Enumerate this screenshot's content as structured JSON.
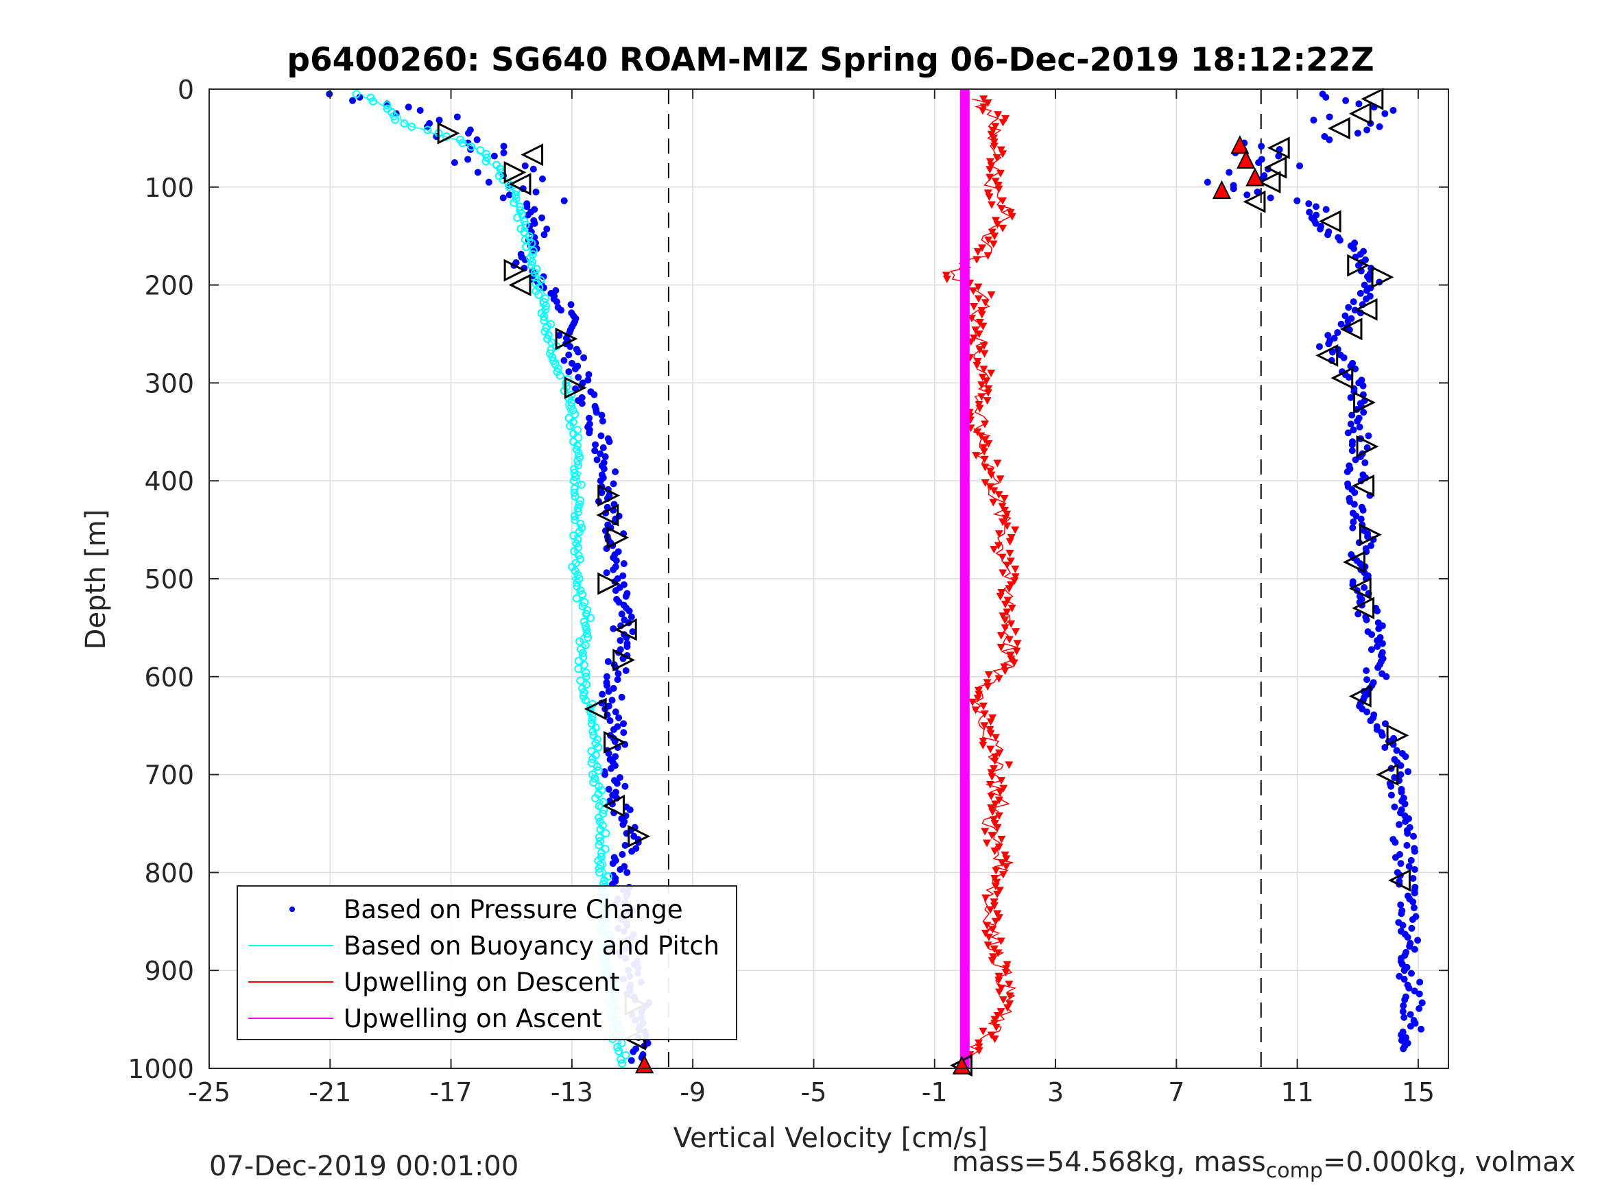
{
  "chart_data": {
    "type": "scatter",
    "title": "p6400260: SG640 ROAM-MIZ Spring 06-Dec-2019 18:12:22Z",
    "xlabel": "Vertical Velocity [cm/s]",
    "ylabel": "Depth [m]",
    "xlim": [
      -25,
      16
    ],
    "ylim": [
      1000,
      0
    ],
    "y_reversed": true,
    "xticks": [
      -25,
      -21,
      -17,
      -13,
      -9,
      -5,
      -1,
      3,
      7,
      11,
      15
    ],
    "yticks": [
      0,
      100,
      200,
      300,
      400,
      500,
      600,
      700,
      800,
      900,
      1000
    ],
    "grid": true,
    "legend_position": "bottom-left",
    "dashed_lines_x": [
      -9.8,
      9.8
    ],
    "series": [
      {
        "name": "Based on Pressure Change",
        "style": "dots",
        "color": "#0000ff",
        "profiles": [
          {
            "depth": [
              5,
              15,
              25,
              35,
              45,
              55,
              65,
              75,
              85,
              95,
              105,
              120,
              140,
              160,
              180,
              200,
              220,
              240,
              260,
              280,
              300,
              330,
              360,
              400,
              430,
              460,
              500,
              530,
              560,
              600,
              630,
              660,
              700,
              730,
              760,
              800,
              830,
              860,
              900,
              930,
              960,
              980,
              995
            ],
            "velocity": [
              -21,
              -18.5,
              -17.8,
              -17.5,
              -16.8,
              -15.8,
              -15.4,
              -15.8,
              -15.2,
              -15.0,
              -14.6,
              -14.3,
              -14.1,
              -14.3,
              -14.6,
              -14.0,
              -13.2,
              -13.2,
              -13.0,
              -12.9,
              -12.7,
              -12.3,
              -12.0,
              -11.7,
              -11.8,
              -11.5,
              -11.6,
              -11.4,
              -11.3,
              -11.6,
              -11.7,
              -11.5,
              -11.6,
              -11.4,
              -11.0,
              -11.5,
              -11.3,
              -11.2,
              -11.1,
              -10.8,
              -10.6,
              -10.6,
              -10.7
            ]
          },
          {
            "depth": [
              5,
              15,
              25,
              35,
              45,
              55,
              65,
              75,
              85,
              95,
              105,
              120,
              140,
              160,
              180,
              200,
              220,
              240,
              260,
              280,
              300,
              330,
              360,
              400,
              430,
              460,
              500,
              530,
              560,
              600,
              630,
              660,
              700,
              730,
              760,
              800,
              830,
              860,
              900,
              930,
              960,
              980
            ],
            "velocity": [
              12.8,
              13.2,
              13.0,
              12.6,
              12.4,
              10.4,
              10.0,
              10.2,
              9.6,
              9.2,
              10.1,
              11.6,
              11.9,
              12.8,
              13.2,
              13.5,
              13.0,
              12.8,
              12.0,
              12.5,
              12.9,
              13.1,
              13.0,
              13.0,
              13.1,
              13.2,
              13.0,
              13.3,
              13.6,
              13.6,
              13.3,
              14.1,
              14.4,
              14.3,
              14.5,
              14.6,
              14.7,
              14.7,
              14.7,
              14.8,
              14.8,
              14.3
            ]
          }
        ]
      },
      {
        "name": "Based on Buoyancy and Pitch",
        "style": "line-markers",
        "color": "#00ffff",
        "profiles": [
          {
            "depth": [
              5,
              20,
              35,
              45,
              55,
              70,
              85,
              100,
              120,
              150,
              180,
              210,
              240,
              270,
              300,
              340,
              380,
              420,
              460,
              500,
              540,
              580,
              620,
              660,
              700,
              740,
              780,
              820,
              860,
              900,
              940,
              970,
              995
            ],
            "velocity": [
              -20.0,
              -19.0,
              -18.6,
              -17.5,
              -16.5,
              -15.8,
              -15.4,
              -15.0,
              -14.8,
              -14.5,
              -14.3,
              -14.0,
              -13.8,
              -13.6,
              -13.2,
              -13.0,
              -12.8,
              -12.8,
              -12.8,
              -12.9,
              -12.5,
              -12.7,
              -12.5,
              -12.3,
              -12.2,
              -12.0,
              -12.0,
              -11.9,
              -11.9,
              -11.8,
              -11.6,
              -11.5,
              -11.2
            ]
          }
        ]
      },
      {
        "name": "Upwelling on Descent",
        "style": "line-down-triangles",
        "color": "#ff0000",
        "profiles": [
          {
            "depth": [
              10,
              30,
              50,
              70,
              90,
              110,
              130,
              150,
              170,
              190,
              210,
              230,
              250,
              270,
              290,
              310,
              330,
              350,
              370,
              390,
              410,
              430,
              450,
              470,
              490,
              510,
              530,
              550,
              570,
              590,
              610,
              630,
              650,
              670,
              690,
              710,
              730,
              750,
              770,
              790,
              810,
              830,
              850,
              870,
              890,
              910,
              930,
              950,
              970,
              990
            ],
            "velocity": [
              0.4,
              1.1,
              0.8,
              1.2,
              0.9,
              1.0,
              1.4,
              0.9,
              0.6,
              -0.6,
              0.7,
              0.5,
              0.5,
              0.4,
              0.7,
              0.6,
              0.4,
              0.5,
              0.6,
              0.9,
              1.0,
              1.1,
              1.4,
              1.2,
              1.5,
              1.3,
              1.6,
              1.4,
              1.5,
              1.3,
              0.6,
              0.5,
              0.7,
              0.9,
              1.2,
              1.0,
              1.2,
              0.8,
              1.0,
              1.3,
              1.1,
              0.7,
              0.9,
              1.0,
              1.2,
              1.3,
              1.5,
              1.1,
              0.7,
              0.1
            ]
          }
        ]
      },
      {
        "name": "Upwelling on Ascent",
        "style": "thick-line",
        "color": "#ff00ff",
        "profiles": [
          {
            "depth": [
              0,
              1000
            ],
            "velocity": [
              0.0,
              0.0
            ]
          }
        ]
      }
    ],
    "markers": {
      "black_triangles": [
        {
          "x": -17.1,
          "y": 45,
          "dir": "right"
        },
        {
          "x": -14.3,
          "y": 67,
          "dir": "left"
        },
        {
          "x": -14.9,
          "y": 85,
          "dir": "right"
        },
        {
          "x": -14.7,
          "y": 97,
          "dir": "left"
        },
        {
          "x": -14.9,
          "y": 185,
          "dir": "right"
        },
        {
          "x": -14.7,
          "y": 200,
          "dir": "left"
        },
        {
          "x": -13.2,
          "y": 255,
          "dir": "right"
        },
        {
          "x": -12.9,
          "y": 305,
          "dir": "right"
        },
        {
          "x": -11.8,
          "y": 415,
          "dir": "right"
        },
        {
          "x": -11.8,
          "y": 435,
          "dir": "left"
        },
        {
          "x": -11.5,
          "y": 458,
          "dir": "right"
        },
        {
          "x": -11.8,
          "y": 505,
          "dir": "right"
        },
        {
          "x": -11.2,
          "y": 552,
          "dir": "left"
        },
        {
          "x": -11.3,
          "y": 583,
          "dir": "right"
        },
        {
          "x": -12.2,
          "y": 633,
          "dir": "left"
        },
        {
          "x": -11.6,
          "y": 667,
          "dir": "right"
        },
        {
          "x": -11.6,
          "y": 732,
          "dir": "left"
        },
        {
          "x": -10.8,
          "y": 763,
          "dir": "right"
        },
        {
          "x": -10.9,
          "y": 935,
          "dir": "right"
        },
        {
          "x": -10.9,
          "y": 970,
          "dir": "left"
        },
        {
          "x": 13.5,
          "y": 10,
          "dir": "left"
        },
        {
          "x": 13.1,
          "y": 25,
          "dir": "left"
        },
        {
          "x": 12.4,
          "y": 40,
          "dir": "left"
        },
        {
          "x": 10.4,
          "y": 60,
          "dir": "left"
        },
        {
          "x": 10.3,
          "y": 80,
          "dir": "left"
        },
        {
          "x": 10.1,
          "y": 95,
          "dir": "left"
        },
        {
          "x": 9.6,
          "y": 115,
          "dir": "left"
        },
        {
          "x": 12.1,
          "y": 135,
          "dir": "left"
        },
        {
          "x": 13.0,
          "y": 180,
          "dir": "right"
        },
        {
          "x": 13.8,
          "y": 192,
          "dir": "right"
        },
        {
          "x": 13.3,
          "y": 225,
          "dir": "left"
        },
        {
          "x": 12.8,
          "y": 245,
          "dir": "left"
        },
        {
          "x": 12.0,
          "y": 272,
          "dir": "left"
        },
        {
          "x": 12.5,
          "y": 295,
          "dir": "left"
        },
        {
          "x": 13.2,
          "y": 320,
          "dir": "right"
        },
        {
          "x": 13.3,
          "y": 365,
          "dir": "right"
        },
        {
          "x": 13.2,
          "y": 405,
          "dir": "left"
        },
        {
          "x": 13.4,
          "y": 455,
          "dir": "right"
        },
        {
          "x": 12.9,
          "y": 483,
          "dir": "left"
        },
        {
          "x": 13.1,
          "y": 510,
          "dir": "left"
        },
        {
          "x": 13.2,
          "y": 530,
          "dir": "left"
        },
        {
          "x": 13.1,
          "y": 620,
          "dir": "left"
        },
        {
          "x": 14.3,
          "y": 660,
          "dir": "right"
        },
        {
          "x": 14.0,
          "y": 700,
          "dir": "left"
        },
        {
          "x": 14.4,
          "y": 808,
          "dir": "left"
        },
        {
          "x": -0.1,
          "y": 997,
          "dir": "left"
        }
      ],
      "red_up_triangles": [
        {
          "x": 9.1,
          "y": 57
        },
        {
          "x": 9.3,
          "y": 72
        },
        {
          "x": 9.6,
          "y": 90
        },
        {
          "x": 8.5,
          "y": 103
        },
        {
          "x": -10.6,
          "y": 996
        },
        {
          "x": -0.1,
          "y": 997
        }
      ]
    }
  },
  "footer": {
    "timestamp": "07-Dec-2019 00:01:00",
    "mass_text": "mass=54.568kg, mass",
    "mass_sub": "comp",
    "mass_tail": "=0.000kg, volmax"
  }
}
